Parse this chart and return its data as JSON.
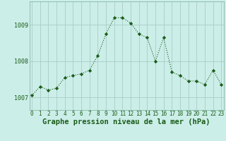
{
  "x": [
    0,
    1,
    2,
    3,
    4,
    5,
    6,
    7,
    8,
    9,
    10,
    11,
    12,
    13,
    14,
    15,
    16,
    17,
    18,
    19,
    20,
    21,
    22,
    23
  ],
  "y": [
    1007.05,
    1007.3,
    1007.2,
    1007.25,
    1007.55,
    1007.6,
    1007.65,
    1007.75,
    1008.15,
    1008.75,
    1009.2,
    1009.2,
    1009.05,
    1008.75,
    1008.65,
    1008.0,
    1008.65,
    1007.7,
    1007.6,
    1007.45,
    1007.45,
    1007.35,
    1007.75,
    1007.35
  ],
  "line_color": "#1a5c1a",
  "marker": "D",
  "marker_size": 2.2,
  "bg_color": "#cceee8",
  "grid_color": "#aaccc8",
  "xlabel": "Graphe pression niveau de la mer (hPa)",
  "xlabel_fontsize": 7.5,
  "ylabel_ticks": [
    1007,
    1008,
    1009
  ],
  "xlim": [
    -0.3,
    23.3
  ],
  "ylim": [
    1006.65,
    1009.65
  ],
  "xtick_labels": [
    "0",
    "1",
    "2",
    "3",
    "4",
    "5",
    "6",
    "7",
    "8",
    "9",
    "10",
    "11",
    "12",
    "13",
    "14",
    "15",
    "16",
    "17",
    "18",
    "19",
    "20",
    "21",
    "22",
    "23"
  ],
  "axis_label_color": "#1a5c1a",
  "tick_color": "#1a5c1a",
  "tick_fontsize": 5.5,
  "ytick_fontsize": 6.0
}
